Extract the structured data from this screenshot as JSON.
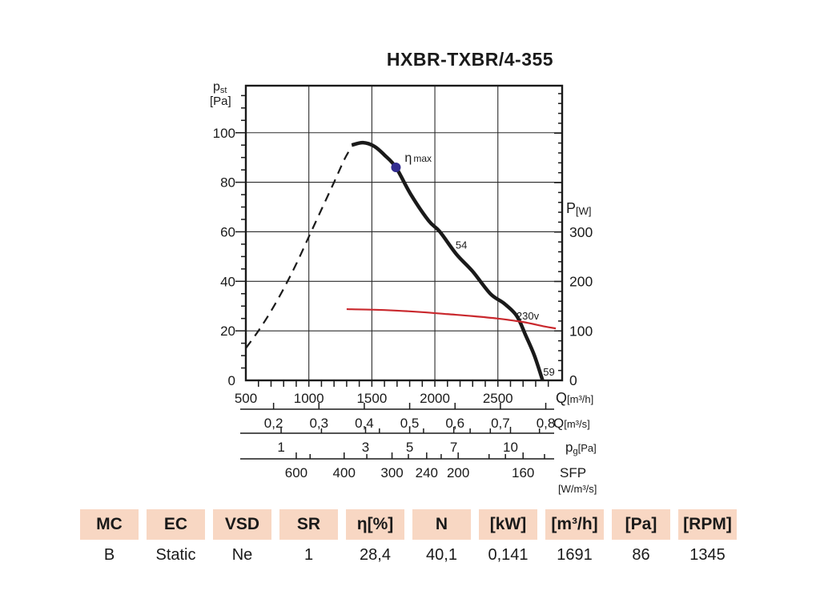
{
  "title": "HXBR-TXBR/4-355",
  "colors": {
    "curve": "#1a1a1a",
    "power_red": "#c9282d",
    "eta_navy": "#322c8f",
    "table_header_bg": "#f8d7c3",
    "grid": "#2b2b2b"
  },
  "chart_data": {
    "type": "line",
    "title": "HXBR-TXBR/4-355",
    "x_axis": {
      "label_main": "Q",
      "unit": "[m³/h]",
      "min": 500,
      "max": 3010,
      "major_ticks": [
        500,
        1000,
        1500,
        2000,
        2500
      ],
      "minor_step": 100
    },
    "y_axis_left": {
      "label_main": "p",
      "label_sub": "st",
      "unit": "[Pa]",
      "min": 0,
      "max": 119,
      "major_ticks": [
        0,
        20,
        40,
        60,
        80,
        100
      ],
      "minor_step": 5
    },
    "y_axis_right": {
      "label_main": "P",
      "unit": "[W]",
      "min": 0,
      "max": 596,
      "major_ticks": [
        0,
        100,
        200,
        300
      ],
      "minor_step": 20
    },
    "sub_axes": [
      {
        "name": "flow-m3s",
        "label_main": "Q",
        "label_sub": "",
        "unit": "[m³/s]",
        "unit_line2": "",
        "ticks": [
          {
            "label": "0,2",
            "q": 720
          },
          {
            "label": "0,3",
            "q": 1080
          },
          {
            "label": "0,4",
            "q": 1440
          },
          {
            "label": "0,5",
            "q": 1800
          },
          {
            "label": "0,6",
            "q": 2160
          },
          {
            "label": "0,7",
            "q": 2520
          },
          {
            "label": "0,8",
            "q": 2880
          }
        ],
        "minor_q": []
      },
      {
        "name": "dynamic-pressure",
        "label_main": "p",
        "label_sub": "g",
        "unit": "[Pa]",
        "unit_line2": "",
        "ticks": [
          {
            "label": "1",
            "q": 780
          },
          {
            "label": "3",
            "q": 1450
          },
          {
            "label": "5",
            "q": 1800
          },
          {
            "label": "7",
            "q": 2150
          },
          {
            "label": "10",
            "q": 2600
          }
        ],
        "minor_q": [
          1100,
          1560,
          1910,
          2280,
          2440,
          2830
        ]
      },
      {
        "name": "sfp",
        "label_main": "SFP",
        "label_sub": "",
        "unit": "",
        "unit_line2": "[W/m³/s]",
        "ticks": [
          {
            "label": "600",
            "q": 900
          },
          {
            "label": "400",
            "q": 1280
          },
          {
            "label": "300",
            "q": 1660
          },
          {
            "label": "240",
            "q": 1935
          },
          {
            "label": "200",
            "q": 2185
          },
          {
            "label": "160",
            "q": 2700
          }
        ],
        "minor_q": [
          1010,
          1460,
          1790,
          2050,
          2430,
          2560,
          2870
        ]
      }
    ],
    "series": [
      {
        "name": "pressure-curve-unstable-region",
        "style": "dashed",
        "axis": "left",
        "color": "#1a1a1a",
        "width": 2.2,
        "points": [
          [
            500,
            13
          ],
          [
            600,
            20
          ],
          [
            700,
            28
          ],
          [
            800,
            37
          ],
          [
            900,
            47
          ],
          [
            1000,
            58
          ],
          [
            1100,
            69
          ],
          [
            1200,
            80
          ],
          [
            1280,
            89
          ],
          [
            1335,
            94
          ]
        ]
      },
      {
        "name": "pressure-curve",
        "style": "solid",
        "axis": "left",
        "color": "#1a1a1a",
        "width": 4.5,
        "points": [
          [
            1340,
            95
          ],
          [
            1430,
            96
          ],
          [
            1520,
            94.5
          ],
          [
            1600,
            91
          ],
          [
            1691,
            86
          ],
          [
            1810,
            75
          ],
          [
            1950,
            64.5
          ],
          [
            2040,
            60
          ],
          [
            2170,
            51
          ],
          [
            2300,
            44
          ],
          [
            2440,
            35
          ],
          [
            2551,
            31
          ],
          [
            2650,
            26
          ],
          [
            2722,
            18
          ],
          [
            2790,
            10
          ],
          [
            2855,
            0
          ]
        ]
      },
      {
        "name": "power-curve-230v",
        "style": "solid",
        "axis": "right",
        "color": "#c9282d",
        "width": 2.2,
        "points": [
          [
            1300,
            144
          ],
          [
            1500,
            143
          ],
          [
            1700,
            141
          ],
          [
            1900,
            138
          ],
          [
            2100,
            134
          ],
          [
            2300,
            130
          ],
          [
            2500,
            125
          ],
          [
            2700,
            118
          ],
          [
            2870,
            109
          ],
          [
            2960,
            105
          ]
        ]
      }
    ],
    "operating_point": {
      "q": 1691,
      "p": 86,
      "label": "η max",
      "color": "#322c8f"
    },
    "annotations": [
      {
        "text": "54",
        "q": 2210,
        "p": 54.5,
        "color": "#1a1a1a"
      },
      {
        "text": "59",
        "q": 2905,
        "p": 3.2,
        "color": "#1a1a1a"
      },
      {
        "text": "230v",
        "q": 2737,
        "p": 25.8,
        "color": "#c9282d"
      }
    ]
  },
  "table": {
    "headers": [
      "MC",
      "EC",
      "VSD",
      "SR",
      "η[%]",
      "N",
      "[kW]",
      "[m³/h]",
      "[Pa]",
      "[RPM]"
    ],
    "values": [
      "B",
      "Static",
      "Ne",
      "1",
      "28,4",
      "40,1",
      "0,141",
      "1691",
      "86",
      "1345"
    ]
  }
}
